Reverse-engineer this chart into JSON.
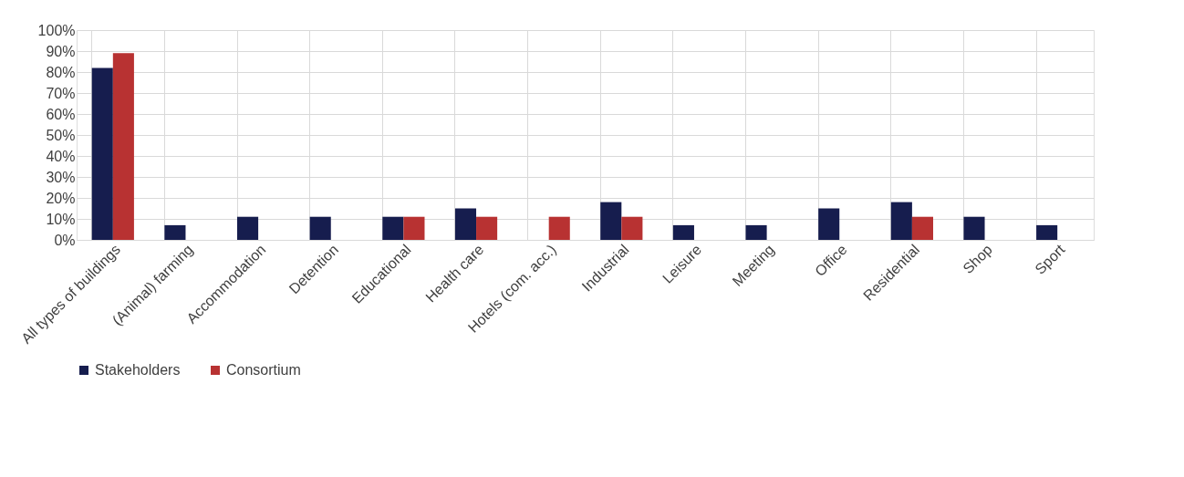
{
  "chart_data": {
    "type": "bar",
    "categories": [
      "All types of buildings",
      "(Animal) farming",
      "Accommodation",
      "Detention",
      "Educational",
      "Health care",
      "Hotels (com. acc.)",
      "Industrial",
      "Leisure",
      "Meeting",
      "Office",
      "Residential",
      "Shop",
      "Sport"
    ],
    "series": [
      {
        "name": "Stakeholders",
        "color": "#161d4e",
        "values": [
          82,
          7,
          11,
          11,
          11,
          15,
          null,
          18,
          7,
          7,
          15,
          18,
          11,
          7
        ]
      },
      {
        "name": "Consortium",
        "color": "#b83232",
        "values": [
          89,
          null,
          null,
          null,
          11,
          11,
          11,
          11,
          null,
          null,
          null,
          11,
          null,
          null
        ]
      }
    ],
    "ylim": [
      0,
      100
    ],
    "yticks": [
      {
        "value": 0,
        "label": "0%"
      },
      {
        "value": 10,
        "label": "10%"
      },
      {
        "value": 20,
        "label": "20%"
      },
      {
        "value": 30,
        "label": "30%"
      },
      {
        "value": 40,
        "label": "40%"
      },
      {
        "value": 50,
        "label": "50%"
      },
      {
        "value": 60,
        "label": "60%"
      },
      {
        "value": 70,
        "label": "70%"
      },
      {
        "value": 80,
        "label": "80%"
      },
      {
        "value": 90,
        "label": "90%"
      },
      {
        "value": 100,
        "label": "100%"
      }
    ],
    "grid": true,
    "legend": "bottom"
  }
}
